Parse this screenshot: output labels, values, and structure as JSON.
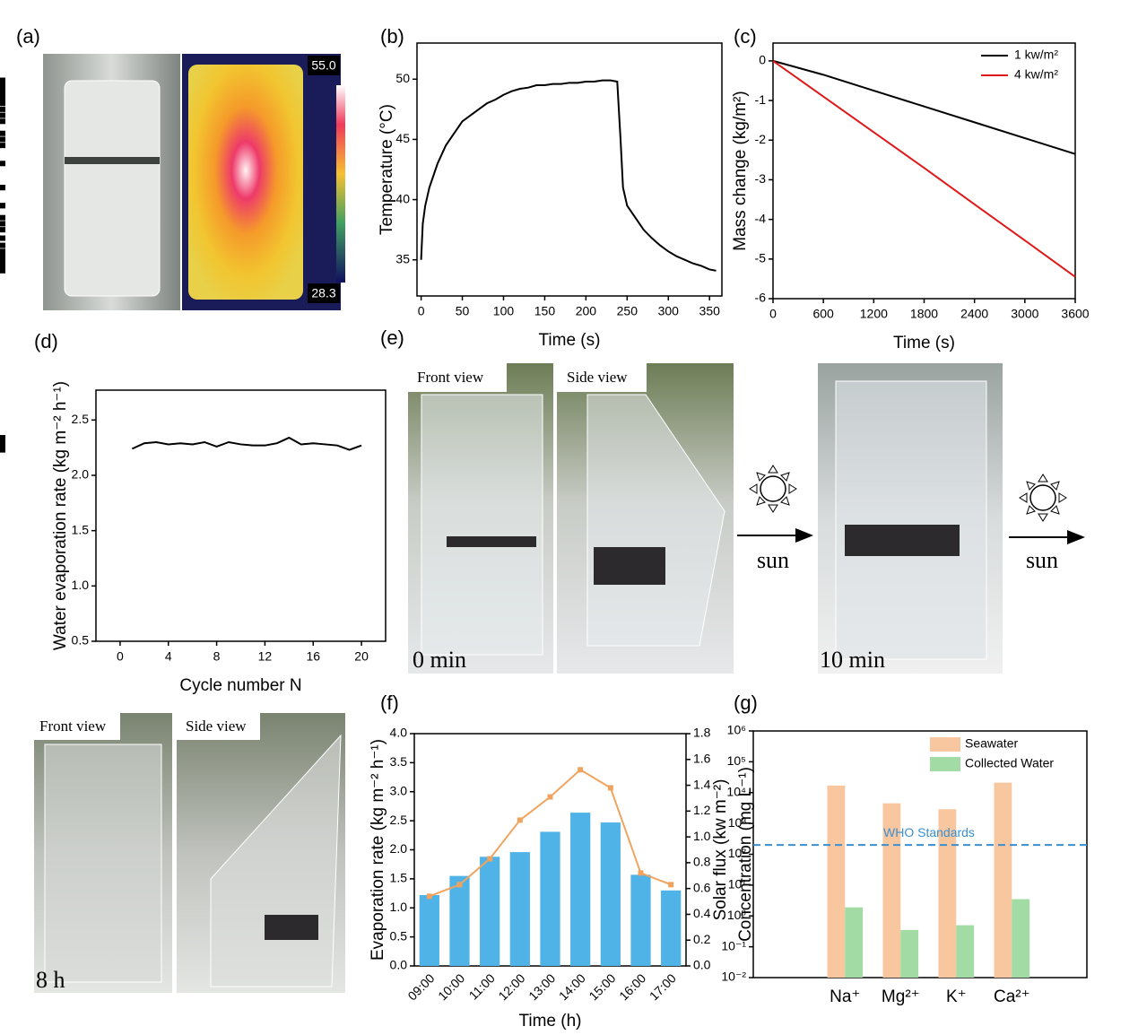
{
  "photos": {
    "a": {
      "panel": "(a)",
      "max": "55.0",
      "min": "28.3"
    },
    "e": {
      "panel": "(e)",
      "front": "Front view",
      "side": "Side view",
      "start": "0 min",
      "end": "10 min",
      "sun": [
        "sun",
        "sun"
      ]
    },
    "bottom": {
      "front": "Front view",
      "side": "Side view",
      "time": "8 h"
    }
  },
  "chart_data": [
    {
      "type": "line",
      "panel": "(b)",
      "x_label": "Time (s)",
      "y_label": "Temperature (°C)",
      "marker": "square",
      "x": [
        0,
        2,
        5,
        10,
        20,
        30,
        40,
        50,
        60,
        70,
        80,
        90,
        100,
        110,
        120,
        130,
        140,
        150,
        160,
        170,
        180,
        190,
        200,
        210,
        220,
        230,
        238,
        242,
        245,
        250,
        260,
        270,
        280,
        290,
        300,
        310,
        320,
        330,
        340,
        350,
        358
      ],
      "series": [
        {
          "color": "#000000",
          "values": [
            35,
            38,
            39.5,
            41,
            43,
            44.5,
            45.5,
            46.5,
            47,
            47.5,
            48,
            48.3,
            48.7,
            49,
            49.2,
            49.3,
            49.5,
            49.5,
            49.6,
            49.6,
            49.7,
            49.7,
            49.8,
            49.8,
            49.9,
            49.9,
            49.8,
            45,
            41,
            39.5,
            38.5,
            37.5,
            36.8,
            36.2,
            35.7,
            35.3,
            35,
            34.7,
            34.5,
            34.2,
            34.1
          ]
        }
      ],
      "xlim": [
        -5,
        365
      ],
      "xticks": [
        0,
        50,
        100,
        150,
        200,
        250,
        300,
        350
      ],
      "ylim": [
        32,
        53
      ],
      "yticks": [
        35,
        40,
        45,
        50
      ]
    },
    {
      "type": "line",
      "panel": "(c)",
      "x_label": "Time (s)",
      "y_label": "Mass change (kg/m²)",
      "legend": "top-right",
      "x": [
        0,
        600,
        1200,
        1800,
        2400,
        3000,
        3600
      ],
      "series": [
        {
          "name": "1 kw/m²",
          "color": "#000000",
          "values": [
            0,
            -0.35,
            -0.75,
            -1.15,
            -1.55,
            -1.95,
            -2.35
          ]
        },
        {
          "name": "4 kw/m²",
          "color": "#e01818",
          "values": [
            0,
            -0.9,
            -1.8,
            -2.7,
            -3.62,
            -4.53,
            -5.45
          ]
        }
      ],
      "xlim": [
        0,
        3600
      ],
      "xticks": [
        0,
        600,
        1200,
        1800,
        2400,
        3000,
        3600
      ],
      "ylim": [
        -6,
        0.45
      ],
      "yticks": [
        0,
        -1,
        -2,
        -3,
        -4,
        -5,
        -6
      ]
    },
    {
      "type": "line",
      "panel": "(d)",
      "x_label": "Cycle number N",
      "y_label": "Water evaporation rate (kg m⁻² h⁻¹)",
      "marker": "square",
      "x": [
        1,
        2,
        3,
        4,
        5,
        6,
        7,
        8,
        9,
        10,
        11,
        12,
        13,
        14,
        15,
        16,
        17,
        18,
        19,
        20
      ],
      "series": [
        {
          "color": "#000000",
          "values": [
            2.24,
            2.29,
            2.3,
            2.28,
            2.29,
            2.28,
            2.3,
            2.26,
            2.3,
            2.28,
            2.27,
            2.27,
            2.29,
            2.34,
            2.28,
            2.29,
            2.28,
            2.27,
            2.23,
            2.27
          ]
        }
      ],
      "xlim": [
        -2,
        22
      ],
      "xticks": [
        0,
        4,
        8,
        12,
        16,
        20
      ],
      "ylim": [
        0.5,
        2.77
      ],
      "yticks": [
        0.5,
        {
          "value": 1,
          "label": "1.0"
        },
        1.5,
        {
          "value": 2,
          "label": "2.0"
        },
        2.5
      ]
    },
    {
      "type": "combo",
      "panel": "(f)",
      "x_label": "Time (h)",
      "y_label": "Evaporation rate (kg m⁻² h⁻¹)",
      "y2_label": "Solar flux (kw m⁻²)",
      "categories": [
        "09:00",
        "10:00",
        "11:00",
        "12:00",
        "13:00",
        "14:00",
        "15:00",
        "16:00",
        "17:00"
      ],
      "series": [
        {
          "kind": "bar",
          "color": "#4fb3e8",
          "values": [
            1.22,
            1.55,
            1.88,
            1.96,
            2.31,
            2.64,
            2.47,
            1.57,
            1.3
          ]
        },
        {
          "kind": "line",
          "axis": "y2",
          "color": "#f0a35e",
          "values": [
            0.54,
            0.63,
            0.83,
            1.13,
            1.31,
            1.52,
            1.38,
            0.72,
            0.63
          ]
        }
      ],
      "ylim": [
        0,
        4
      ],
      "yticks": [
        {
          "value": 0,
          "label": "0.0"
        },
        0.5,
        {
          "value": 1,
          "label": "1.0"
        },
        1.5,
        {
          "value": 2,
          "label": "2.0"
        },
        2.5,
        {
          "value": 3,
          "label": "3.0"
        },
        3.5,
        {
          "value": 4,
          "label": "4.0"
        }
      ],
      "y2lim": [
        0,
        1.8
      ],
      "y2ticks": [
        {
          "value": 0,
          "label": "0.0"
        },
        0.2,
        0.4,
        0.6,
        0.8,
        {
          "value": 1,
          "label": "1.0"
        },
        1.2,
        1.4,
        1.6,
        1.8
      ]
    },
    {
      "type": "bar",
      "panel": "(g)",
      "y_label": "Concentration (mg L⁻¹)",
      "log_y": true,
      "legend": "top-right",
      "categories": [
        "Na⁺",
        "Mg²⁺",
        "K⁺",
        "Ca²⁺"
      ],
      "series": [
        {
          "name": "Seawater",
          "color": "#f8c7a0",
          "values": [
            17000,
            4500,
            2900,
            21000
          ]
        },
        {
          "name": "Collected Water",
          "color": "#a2dba4",
          "values": [
            1.9,
            0.35,
            0.5,
            3.5
          ]
        }
      ],
      "reference_lines": [
        {
          "value": 200,
          "label": "WHO Standards",
          "color": "#3a8fd0"
        }
      ],
      "ylim": [
        0.01,
        1000000
      ],
      "yticks": [
        {
          "value": 0.01,
          "label": "10⁻²"
        },
        {
          "value": 0.1,
          "label": "10⁻¹"
        },
        {
          "value": 1,
          "label": "10⁰"
        },
        {
          "value": 10,
          "label": "10¹"
        },
        {
          "value": 100,
          "label": "10²"
        },
        {
          "value": 1000,
          "label": "10³"
        },
        {
          "value": 10000,
          "label": "10⁴"
        },
        {
          "value": 100000,
          "label": "10⁵"
        },
        {
          "value": 1000000,
          "label": "10⁶"
        }
      ]
    }
  ]
}
